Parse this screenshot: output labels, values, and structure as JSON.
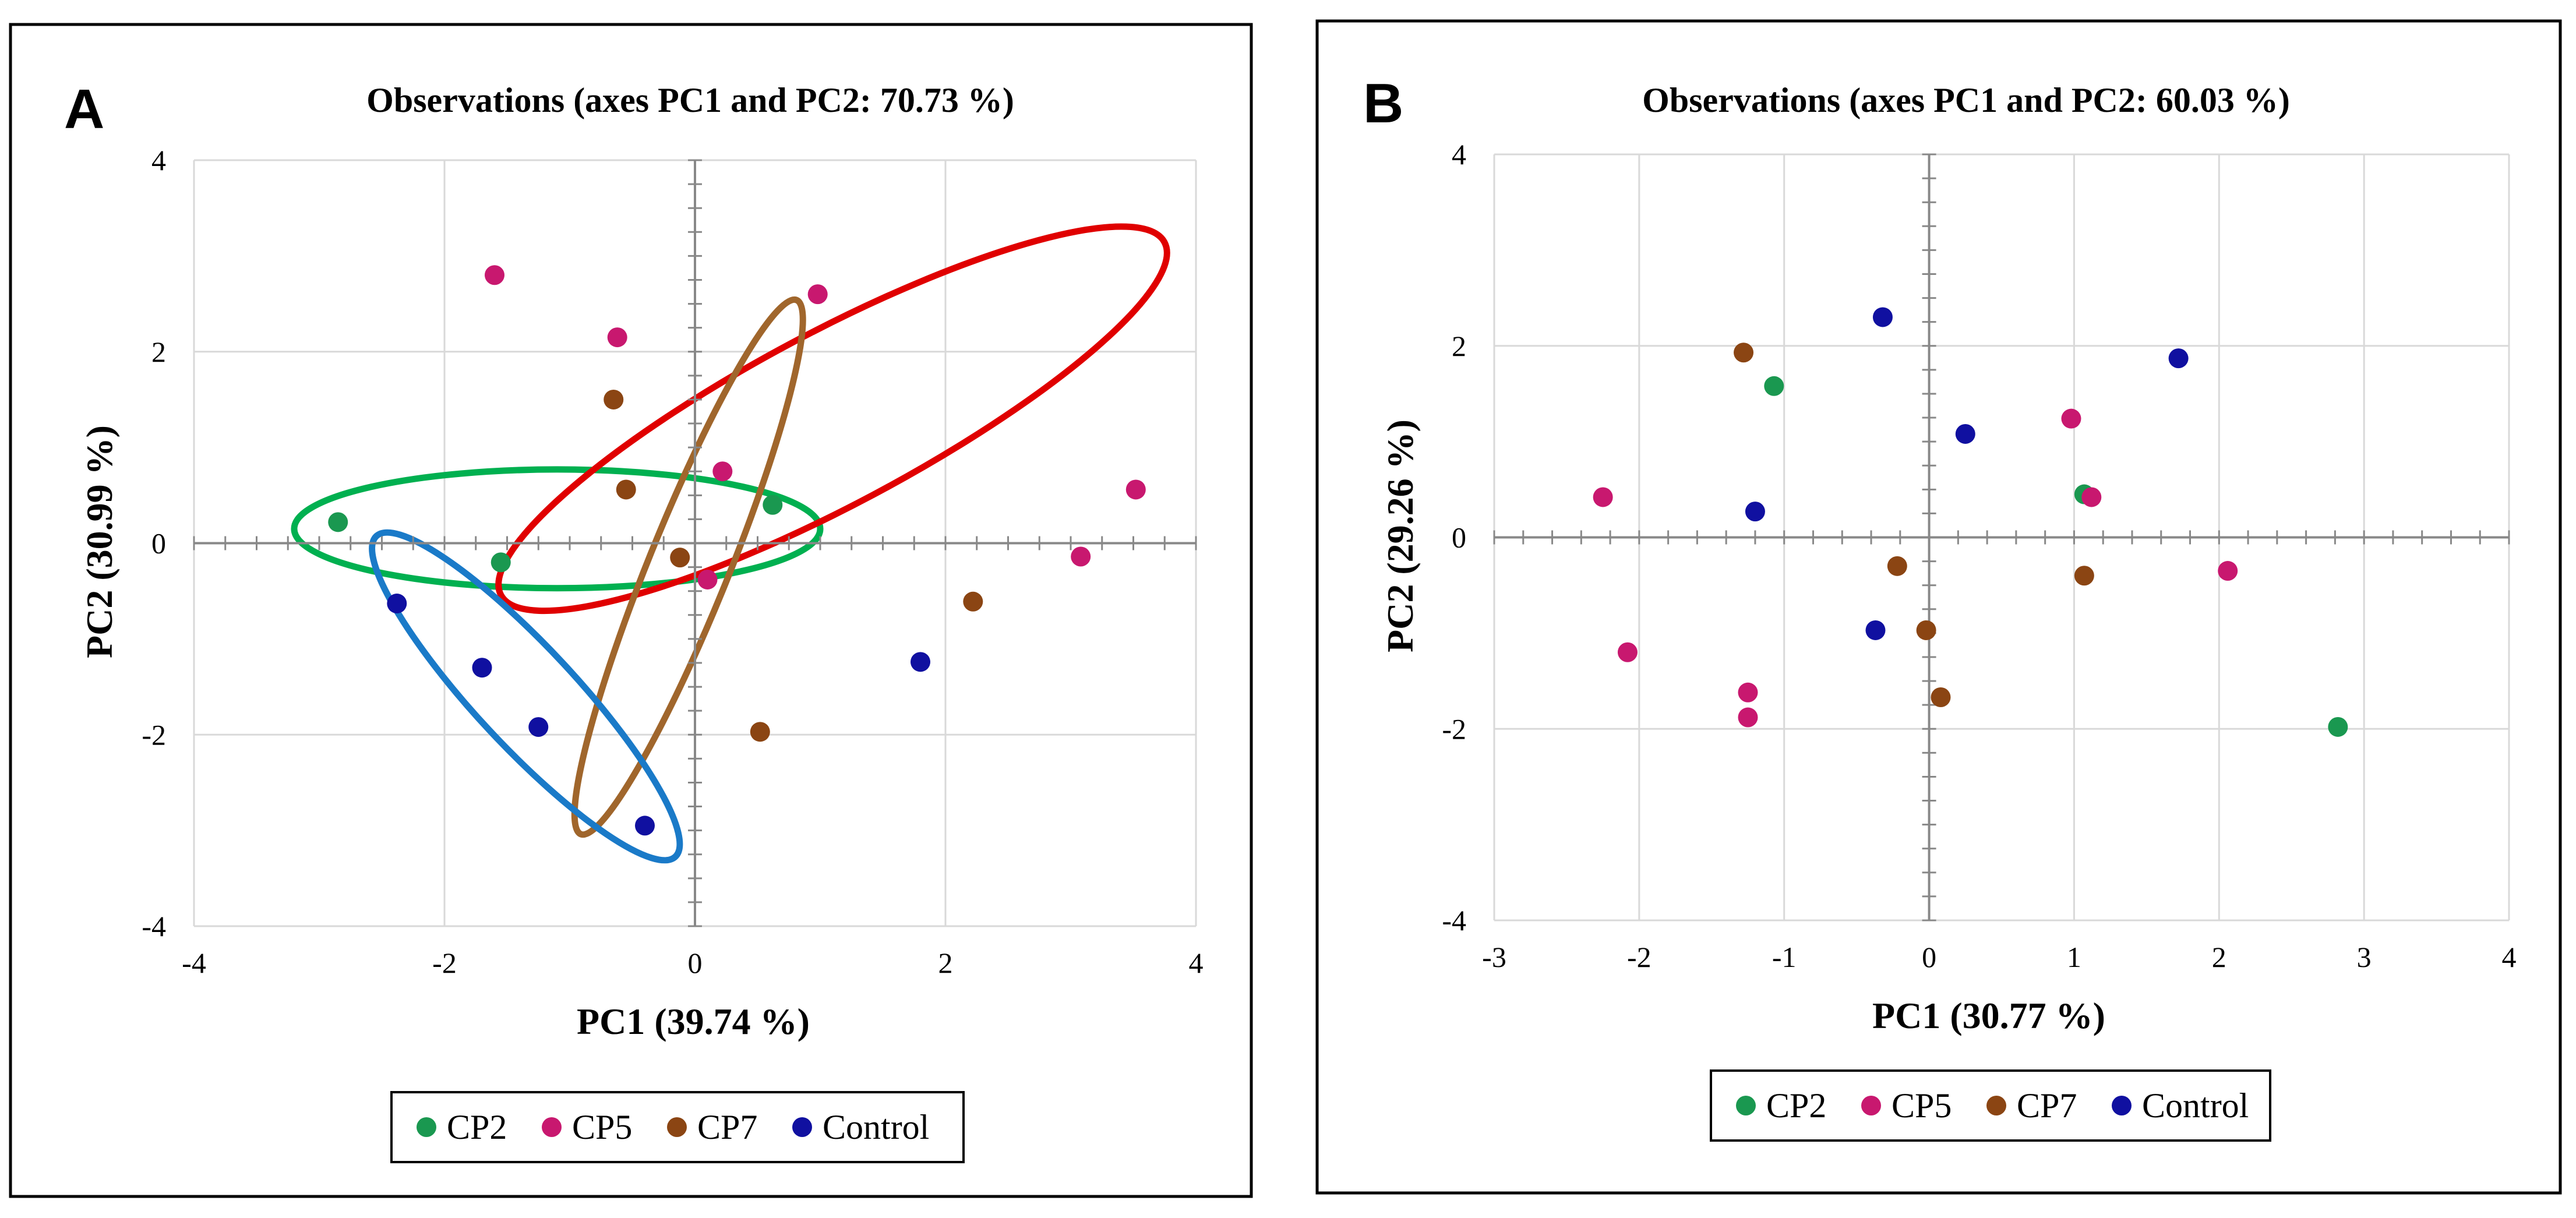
{
  "chart_data": [
    {
      "type": "scatter",
      "panel_label": "A",
      "title": "Observations (axes PC1 and  PC2: 70.73 %)",
      "xlabel": "PC1 (39.74 %)",
      "ylabel": "PC2 (30.99 %)",
      "xlim": [
        -4,
        4
      ],
      "ylim": [
        -4,
        4
      ],
      "xticks": [
        -4,
        -2,
        0,
        2,
        4
      ],
      "yticks": [
        -4,
        -2,
        0,
        2,
        4
      ],
      "xtick_labels": [
        "-4",
        "-2",
        "0",
        "2",
        "4"
      ],
      "ytick_labels": [
        "-4",
        "-2",
        "0",
        "2",
        "4"
      ],
      "legend_position": "bottom-center",
      "series": [
        {
          "name": "CP2",
          "color": "#1a9850",
          "points": [
            [
              -2.85,
              0.22
            ],
            [
              -1.55,
              -0.2
            ],
            [
              0.62,
              0.4
            ]
          ]
        },
        {
          "name": "CP5",
          "color": "#c8186f",
          "points": [
            [
              -1.6,
              2.8
            ],
            [
              -0.62,
              2.15
            ],
            [
              0.98,
              2.6
            ],
            [
              0.22,
              0.75
            ],
            [
              0.1,
              -0.38
            ],
            [
              3.08,
              -0.14
            ],
            [
              3.52,
              0.56
            ]
          ]
        },
        {
          "name": "CP7",
          "color": "#8b4513",
          "points": [
            [
              -0.65,
              1.5
            ],
            [
              -0.55,
              0.56
            ],
            [
              -0.12,
              -0.15
            ],
            [
              0.52,
              -1.97
            ],
            [
              2.22,
              -0.61
            ]
          ]
        },
        {
          "name": "Control",
          "color": "#1010a0",
          "points": [
            [
              -2.38,
              -0.63
            ],
            [
              -1.7,
              -1.3
            ],
            [
              -1.25,
              -1.92
            ],
            [
              -0.4,
              -2.95
            ],
            [
              1.8,
              -1.24
            ]
          ]
        }
      ],
      "ellipses": [
        {
          "group": "CP2",
          "color": "#00b050",
          "center": [
            -1.1,
            0.15
          ],
          "rx": 2.1,
          "ry": 0.62,
          "angle": 0
        },
        {
          "group": "CP5",
          "color": "#e00000",
          "center": [
            1.1,
            1.3
          ],
          "rx": 3.0,
          "ry": 0.9,
          "angle": -28
        },
        {
          "group": "CP7",
          "color": "#a0662c",
          "center": [
            -0.05,
            -0.25
          ],
          "rx": 2.3,
          "ry": 0.42,
          "angle": -68
        },
        {
          "group": "Control",
          "color": "#1a7ac8",
          "center": [
            -1.35,
            -1.6
          ],
          "rx": 1.75,
          "ry": 0.52,
          "angle": 47
        }
      ]
    },
    {
      "type": "scatter",
      "panel_label": "B",
      "title": "Observations (axes PC1 and  PC2: 60.03 %)",
      "xlabel": "PC1 (30.77 %)",
      "ylabel": "PC2 (29.26 %)",
      "xlim": [
        -3,
        4
      ],
      "ylim": [
        -4,
        4
      ],
      "xticks": [
        -3,
        -2,
        -1,
        0,
        1,
        2,
        3,
        4
      ],
      "yticks": [
        -4,
        -2,
        0,
        2,
        4
      ],
      "xtick_labels": [
        "-3",
        "-2",
        "-1",
        "0",
        "1",
        "2",
        "3",
        "4"
      ],
      "ytick_labels": [
        "-4",
        "-2",
        "0",
        "2",
        "4"
      ],
      "legend_position": "bottom-center",
      "series": [
        {
          "name": "CP2",
          "color": "#1a9850",
          "points": [
            [
              -1.07,
              1.58
            ],
            [
              1.07,
              0.45
            ],
            [
              2.82,
              -1.98
            ]
          ]
        },
        {
          "name": "CP5",
          "color": "#c8186f",
          "points": [
            [
              -2.25,
              0.42
            ],
            [
              -2.08,
              -1.2
            ],
            [
              -1.25,
              -1.62
            ],
            [
              -1.25,
              -1.88
            ],
            [
              0.98,
              1.24
            ],
            [
              1.12,
              0.42
            ],
            [
              2.06,
              -0.35
            ]
          ]
        },
        {
          "name": "CP7",
          "color": "#8b4513",
          "points": [
            [
              -1.28,
              1.93
            ],
            [
              -0.22,
              -0.3
            ],
            [
              -0.02,
              -0.97
            ],
            [
              0.08,
              -1.67
            ],
            [
              1.07,
              -0.4
            ]
          ]
        },
        {
          "name": "Control",
          "color": "#1010a0",
          "points": [
            [
              -0.32,
              2.3
            ],
            [
              -1.2,
              0.27
            ],
            [
              -0.37,
              -0.97
            ],
            [
              0.25,
              1.08
            ],
            [
              1.72,
              1.87
            ]
          ]
        }
      ]
    }
  ]
}
